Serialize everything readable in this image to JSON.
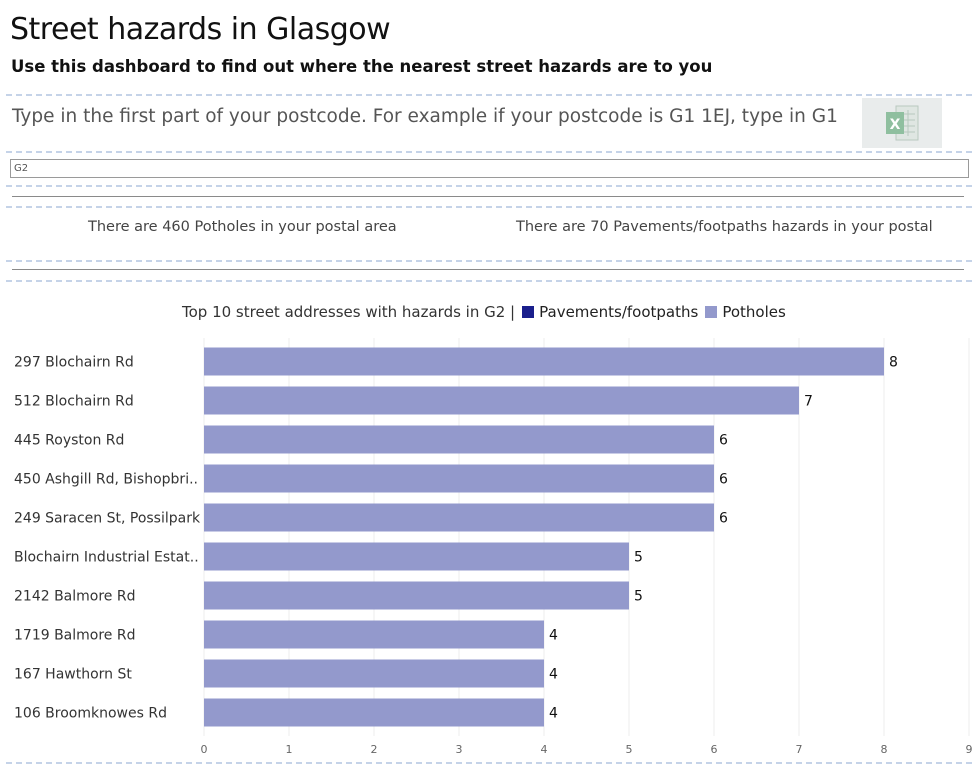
{
  "header": {
    "title": "Street hazards in Glasgow",
    "subtitle": "Use this dashboard to find out where the nearest street hazards are to you"
  },
  "search": {
    "instruction": "Type in the first part of your postcode. For example if your postcode is G1 1EJ, type in G1",
    "value": "G2"
  },
  "export": {
    "icon": "excel-icon",
    "letter": "X"
  },
  "counts": {
    "potholes_text": "There are 460 Potholes in your postal area",
    "pavements_text": "There are 70 Pavements/footpaths hazards in your postal"
  },
  "chart_header": {
    "caption": "Top 10 street addresses with hazards in G2 |",
    "legend": [
      {
        "label": "Pavements/footpaths",
        "color": "#1a1f8c"
      },
      {
        "label": "Potholes",
        "color": "#9399cc"
      }
    ]
  },
  "chart_data": {
    "type": "bar",
    "orientation": "horizontal",
    "categories": [
      "297 Blochairn Rd",
      "512 Blochairn Rd",
      "445 Royston Rd",
      "450 Ashgill Rd, Bishopbri..",
      "249 Saracen St, Possilpark",
      "Blochairn Industrial Estat..",
      "2142 Balmore Rd",
      "1719 Balmore Rd",
      "167 Hawthorn St",
      "106 Broomknowes Rd"
    ],
    "series": [
      {
        "name": "Potholes",
        "color": "#9399cc",
        "values": [
          8,
          7,
          6,
          6,
          6,
          5,
          5,
          4,
          4,
          4
        ]
      }
    ],
    "data_labels": [
      "8",
      "7",
      "6",
      "6",
      "6",
      "5",
      "5",
      "4",
      "4",
      "4"
    ],
    "xlim": [
      0,
      9
    ],
    "x_ticks": [
      "0",
      "1",
      "2",
      "3",
      "4",
      "5",
      "6",
      "7",
      "8",
      "9"
    ],
    "grid": true
  }
}
